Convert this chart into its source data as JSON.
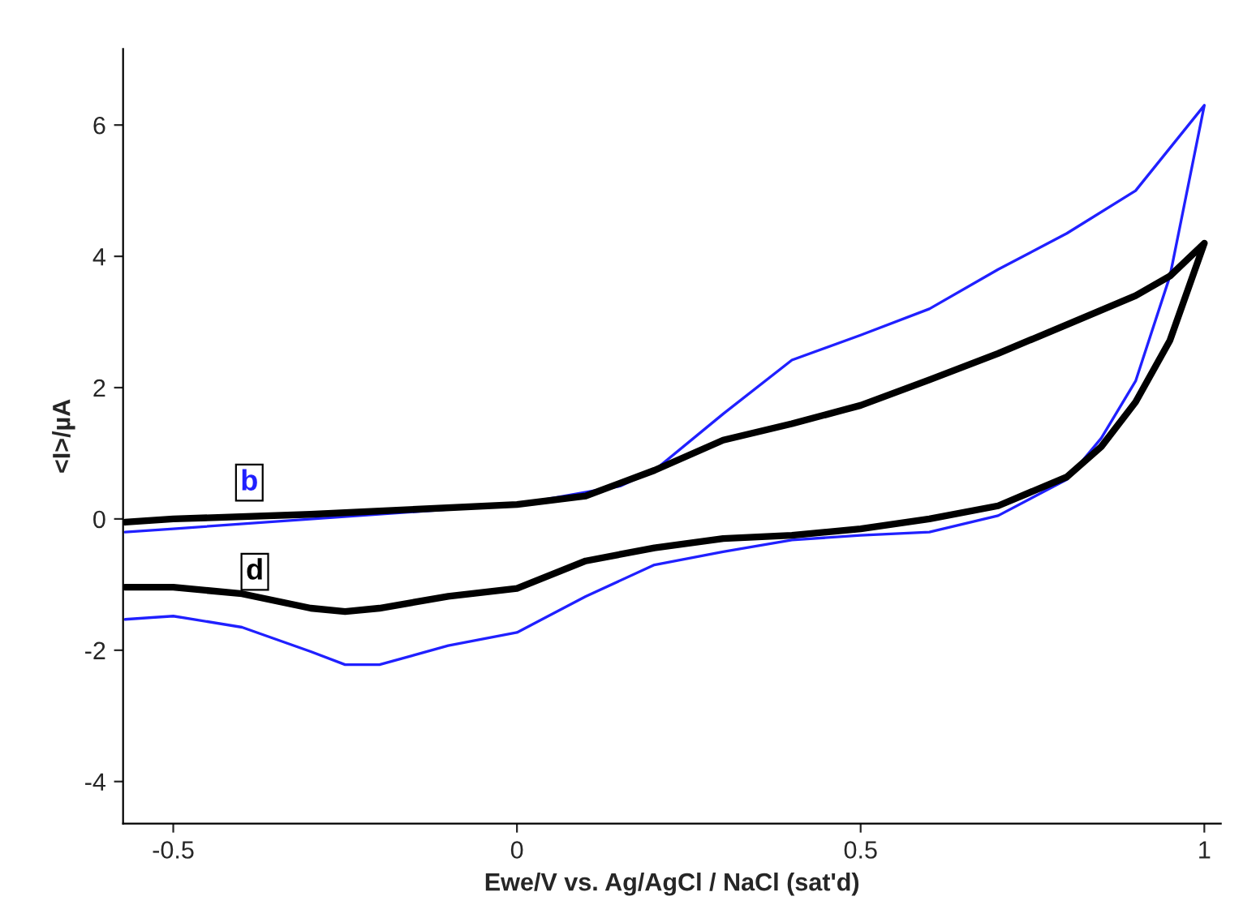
{
  "chart_data": {
    "type": "line",
    "xlabel": "Ewe/V vs. Ag/AgCl / NaCl (sat'd)",
    "ylabel": "<I>/µA",
    "xlim": [
      -0.573,
      1.024
    ],
    "ylim": [
      -4.64,
      7.16
    ],
    "xticks": [
      -0.5,
      0,
      0.5,
      1
    ],
    "yticks": [
      -4,
      -2,
      0,
      2,
      4,
      6
    ],
    "grid": false,
    "legend": false,
    "marker": "none",
    "line_style": "solid",
    "series": [
      {
        "name": "b",
        "color": "#2020ff",
        "x": [
          -0.57,
          -0.5,
          0,
          0.15,
          0.2,
          0.3,
          0.4,
          0.5,
          0.6,
          0.7,
          0.8,
          0.9,
          1.0,
          0.95,
          0.9,
          0.85,
          0.8,
          0.7,
          0.6,
          0.5,
          0.4,
          0.3,
          0.2,
          0.1,
          0,
          -0.1,
          -0.2,
          -0.25,
          -0.3,
          -0.4,
          -0.5,
          -0.57
        ],
        "values": [
          -0.2,
          -0.15,
          0.22,
          0.5,
          0.74,
          1.6,
          2.42,
          2.8,
          3.2,
          3.8,
          4.35,
          5.0,
          6.3,
          3.7,
          2.1,
          1.23,
          0.6,
          0.05,
          -0.2,
          -0.25,
          -0.32,
          -0.5,
          -0.7,
          -1.18,
          -1.73,
          -1.93,
          -2.22,
          -2.22,
          -2.02,
          -1.65,
          -1.48,
          -1.53
        ]
      },
      {
        "name": "d",
        "color": "#000000",
        "x": [
          -0.57,
          -0.5,
          -0.3,
          0,
          0.1,
          0.2,
          0.3,
          0.4,
          0.5,
          0.6,
          0.7,
          0.8,
          0.9,
          0.95,
          1.0,
          0.95,
          0.9,
          0.85,
          0.8,
          0.7,
          0.6,
          0.5,
          0.4,
          0.3,
          0.2,
          0.1,
          0,
          -0.1,
          -0.2,
          -0.25,
          -0.3,
          -0.4,
          -0.5,
          -0.57
        ],
        "values": [
          -0.05,
          0.0,
          0.07,
          0.22,
          0.35,
          0.74,
          1.2,
          1.45,
          1.73,
          2.12,
          2.52,
          2.96,
          3.4,
          3.7,
          4.2,
          2.72,
          1.78,
          1.1,
          0.64,
          0.2,
          0.0,
          -0.15,
          -0.25,
          -0.3,
          -0.44,
          -0.64,
          -1.06,
          -1.18,
          -1.36,
          -1.41,
          -1.36,
          -1.14,
          -1.04,
          -1.04
        ]
      }
    ]
  }
}
